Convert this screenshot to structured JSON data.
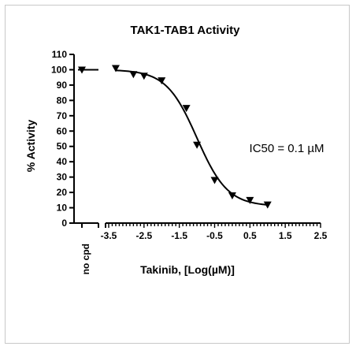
{
  "chart_data": {
    "type": "scatter",
    "title": "TAK1-TAB1 Activity",
    "xlabel": "Takinib, [Log(µM)]",
    "ylabel": "% Activity",
    "annotation": "IC50 = 0.1 µM",
    "control_label": "no cpd",
    "control_value": 100,
    "xlim": [
      -3.5,
      2.5
    ],
    "ylim": [
      0,
      110
    ],
    "x_ticks": [
      "-3.5",
      "-2.5",
      "-1.5",
      "-0.5",
      "0.5",
      "1.5",
      "2.5"
    ],
    "y_ticks": [
      "0",
      "10",
      "20",
      "30",
      "40",
      "50",
      "60",
      "70",
      "80",
      "90",
      "100",
      "110"
    ],
    "x": [
      -3.3,
      -2.8,
      -2.5,
      -2.0,
      -1.3,
      -1.0,
      -0.5,
      0.0,
      0.5,
      1.0
    ],
    "y": [
      101,
      97,
      96,
      93,
      75,
      51,
      28,
      18,
      15,
      12
    ],
    "fit": {
      "bottom": 11,
      "top": 100,
      "log_ic50": -1.0,
      "hill": -1.0,
      "x_range": [
        -3.3,
        1.0
      ]
    },
    "marker": "triangle-down",
    "grid": false,
    "legend": "none"
  }
}
